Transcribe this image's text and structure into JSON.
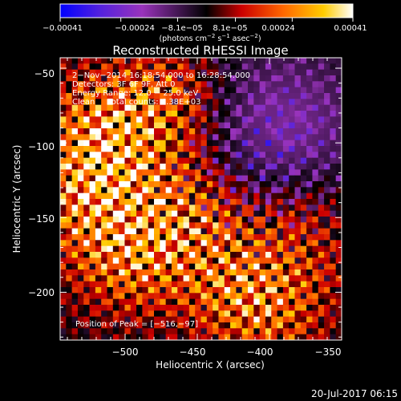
{
  "chart_data": {
    "type": "heatmap",
    "title": "Reconstructed RHESSI Image",
    "xlabel": "Heliocentric X (arcsec)",
    "ylabel": "Heliocentric Y (arcsec)",
    "xlim": [
      -545,
      -350
    ],
    "ylim": [
      -232,
      -43
    ],
    "xticks": [
      -500,
      -450,
      -400,
      -350
    ],
    "xtick_labels": [
      "−500",
      "−450",
      "−400",
      "−350"
    ],
    "yticks": [
      -50,
      -100,
      -150,
      -200
    ],
    "ytick_labels": [
      "−50",
      "−100",
      "−150",
      "−200"
    ],
    "colorbar": {
      "range": [
        -0.00041,
        0.00041
      ],
      "tick_values": [
        -0.00041,
        -0.00024,
        -8.1e-05,
        8.1e-05,
        0.00024,
        0.00041
      ],
      "tick_labels": [
        "−0.00041",
        "−0.00024",
        "−8.1e−05",
        "8.1e−05",
        "0.00024",
        "0.00041"
      ],
      "label_prefix": "(photons cm",
      "label_exp1": "−2",
      "label_mid": " s",
      "label_exp2": "−1",
      "label_mid2": " asec",
      "label_exp3": "−2",
      "label_suffix": ")"
    },
    "annotations": [
      "2−Nov−2014 16:18:54.000 to 16:28:54.000",
      "Detectors: 3F 6F 9F, Att 0",
      "Energy Range: 12.0 − 25.0 keV",
      "Clean     Total counts: 4.38E+03"
    ],
    "peak_label": "Position of Peak = [−516,−97]",
    "peak": [
      -516,
      -97
    ],
    "grid": false,
    "colormap_stops": [
      "#0000ff",
      "#5522dd",
      "#9933bb",
      "#000000",
      "#cc0000",
      "#ff6600",
      "#ffcc00",
      "#ffffff"
    ]
  },
  "footer": {
    "date": "20-Jul-2017 06:15"
  }
}
